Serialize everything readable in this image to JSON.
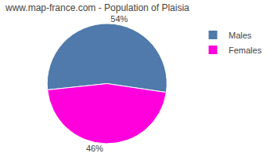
{
  "chart_data": {
    "type": "pie",
    "title": "www.map-france.com - Population of Plaisia",
    "categories": [
      "Males",
      "Females"
    ],
    "values": [
      54,
      46
    ],
    "value_labels": [
      "54%",
      "46%"
    ],
    "colors": [
      "#4f7aab",
      "#ff00dd"
    ],
    "data_labels": true,
    "legend": "upper right"
  }
}
